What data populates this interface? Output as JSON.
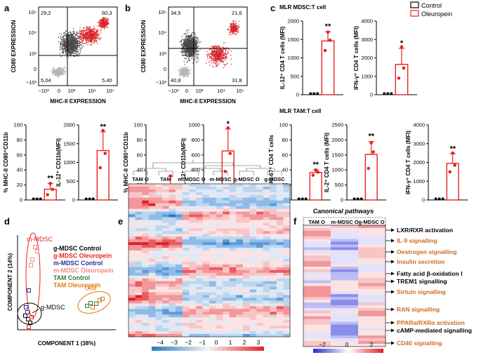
{
  "panels": {
    "a": "a",
    "b": "b",
    "c": "c",
    "d": "d",
    "e": "e",
    "f": "f"
  },
  "legend": {
    "control": "Control",
    "oleuropein": "Oleuropein",
    "control_color": "#000000",
    "oleuropein_color": "#e8231f"
  },
  "flow": {
    "a": {
      "ylabel": "CD80 EXPRESSION",
      "xlabel": "MHC-II EXPRESSION",
      "q_tl": "29,2",
      "q_tr": "60,3",
      "q_bl": "5,04",
      "q_br": "5,40",
      "yticks": [
        "10⁵",
        "10⁴",
        "10³",
        "0",
        "−10³"
      ],
      "xticks": [
        "−10³",
        "0",
        "10³",
        "10⁴",
        "10⁵"
      ]
    },
    "b": {
      "ylabel": "CD80 EXPRESSION",
      "xlabel": "MHC-II EXPRESSION",
      "q_tl": "34,5",
      "q_tr": "21,6",
      "q_bl": "40,8",
      "q_br": "31,8",
      "yticks": [
        "10⁵",
        "10⁴",
        "10³",
        "0",
        "−10³"
      ],
      "xticks": [
        "−10³",
        "0",
        "10³",
        "10⁴",
        "10⁵"
      ]
    }
  },
  "section_titles": {
    "mlr_mdsc": "MLR MDSC:T cell",
    "mlr_tam": "MLR TAM:T cell"
  },
  "chart_data": [
    {
      "id": "c1",
      "type": "bar",
      "ylabel": "IL-12⁺ CD4 T cells (MFI)",
      "ylim": [
        0,
        2000
      ],
      "yticks": [
        "2000",
        "1500",
        "1000",
        "500",
        "0"
      ],
      "sig": "**",
      "control": [
        0,
        0,
        0
      ],
      "oleuropein": [
        1200,
        1480,
        1700
      ]
    },
    {
      "id": "c2",
      "type": "bar",
      "ylabel": "IFN-γ⁺ CD4 T cells (MFI)",
      "ylim": [
        0,
        4000
      ],
      "yticks": [
        "4000",
        "3000",
        "2000",
        "1000",
        "0"
      ],
      "sig": "*",
      "control": [
        0,
        0,
        0
      ],
      "oleuropein": [
        900,
        1450,
        2600
      ]
    },
    {
      "id": "a1",
      "type": "bar",
      "ylabel": "% MHC-II CD80⁺CD11b",
      "ylim": [
        0,
        100
      ],
      "yticks": [
        "100",
        "80",
        "60",
        "40",
        "20",
        "0"
      ],
      "sig": "**",
      "control": [
        0,
        0,
        0
      ],
      "oleuropein": [
        7,
        14,
        22
      ]
    },
    {
      "id": "a2",
      "type": "bar",
      "ylabel": "IL-12⁺ CD11b(MFI)",
      "ylim": [
        0,
        2000
      ],
      "yticks": [
        "2000",
        "1500",
        "1000",
        "500",
        "0"
      ],
      "sig": "**",
      "control": [
        0,
        0,
        0
      ],
      "oleuropein": [
        860,
        1240,
        1850
      ]
    },
    {
      "id": "b1",
      "type": "bar",
      "ylabel": "% MHC-II CD80⁺CD11b",
      "ylim": [
        0,
        100
      ],
      "yticks": [
        "100",
        "80",
        "60",
        "40",
        "20",
        "0"
      ],
      "sig": "",
      "control": [
        0,
        0,
        0
      ],
      "oleuropein": [
        5,
        17,
        32
      ]
    },
    {
      "id": "b2",
      "type": "bar",
      "ylabel": "IL-12⁺ CD11b(MFI)",
      "ylim": [
        0,
        1000
      ],
      "yticks": [
        "1000",
        "800",
        "600",
        "400",
        "200",
        "0"
      ],
      "sig": "*",
      "control": [
        0,
        0,
        0
      ],
      "oleuropein": [
        380,
        620,
        960
      ]
    },
    {
      "id": "t1",
      "type": "bar",
      "ylabel": "% Ki-67⁺ CD4 T cells",
      "ylim": [
        0,
        100
      ],
      "yticks": [
        "100",
        "80",
        "60",
        "40",
        "20",
        "0"
      ],
      "sig": "**",
      "control": [
        0,
        0,
        0
      ],
      "oleuropein": [
        33,
        37,
        40
      ]
    },
    {
      "id": "t2",
      "type": "bar",
      "ylabel": "IL-2⁺ CD4 T cells (MFI)",
      "ylim": [
        0,
        2500
      ],
      "yticks": [
        "2500",
        "2000",
        "1500",
        "1000",
        "500",
        "0"
      ],
      "sig": "**",
      "control": [
        0,
        0,
        0
      ],
      "oleuropein": [
        1050,
        1600,
        1900
      ]
    },
    {
      "id": "t3",
      "type": "bar",
      "ylabel": "IFN-γ⁺ CD4 T cells (MFI)",
      "ylim": [
        0,
        4000
      ],
      "yticks": [
        "4000",
        "3000",
        "2000",
        "1000",
        "0"
      ],
      "sig": "**",
      "control": [
        0,
        0,
        0
      ],
      "oleuropein": [
        1500,
        1850,
        2500
      ]
    }
  ],
  "pca": {
    "xlabel": "COMPONENT 1 (38%)",
    "ylabel": "COMPONENT 2 (14%)",
    "labels": {
      "mmdsc": "m-MDSC",
      "gmdsc": "g-MDSC",
      "tam": "TAM"
    },
    "legend": [
      {
        "text": "g-MDSC Control",
        "color": "#000000"
      },
      {
        "text": "g-MDSC Oleuropein",
        "color": "#e8231f"
      },
      {
        "text": "m-MDSC Control",
        "color": "#2b2f8f"
      },
      {
        "text": "m-MDSC Oleuropein",
        "color": "#f08a8a"
      },
      {
        "text": "TAM Control",
        "color": "#2e7d32"
      },
      {
        "text": "TAM Oleuropein",
        "color": "#e07b1a"
      }
    ]
  },
  "heatmap": {
    "columns": [
      "TAM O",
      "TAM",
      "m-MDSC O",
      "m-MDSC",
      "g-MDSC O",
      "g-MDSC"
    ],
    "scale": [
      "−4",
      "−3",
      "−2",
      "−1",
      "0",
      "1",
      "2",
      "3"
    ]
  },
  "pathways": {
    "title": "Canonical pathways",
    "columns": [
      "TAM O",
      "m-MDSC O",
      "g-MDSC O"
    ],
    "scale": [
      "−2",
      "0",
      "2"
    ],
    "items": [
      {
        "text": "LXR/RXR activation",
        "color": "#000000"
      },
      {
        "text": "IL-9 signalling",
        "color": "#d2691e"
      },
      {
        "text": "Oestrogen signalling",
        "color": "#d2691e"
      },
      {
        "text": "Insulin secretion",
        "color": "#d2691e"
      },
      {
        "text": "Fatty acid β-oxidation I",
        "color": "#000000"
      },
      {
        "text": "TREM1 signalling",
        "color": "#000000"
      },
      {
        "text": "Sirtuin signalling",
        "color": "#d2691e"
      },
      {
        "text": "RAN signalling",
        "color": "#d2691e"
      },
      {
        "text": "PPARα/RXRα activation",
        "color": "#d2691e"
      },
      {
        "text": "cAMP-mediated signalling",
        "color": "#000000"
      },
      {
        "text": "CD40 signalling",
        "color": "#d2691e"
      }
    ]
  }
}
